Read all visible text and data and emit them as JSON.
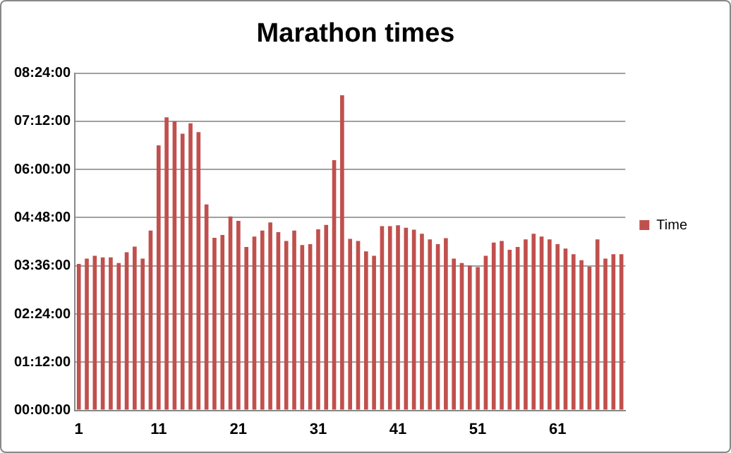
{
  "chart_data": {
    "type": "bar",
    "title": "Marathon times",
    "categories": [
      "1",
      null,
      null,
      null,
      null,
      null,
      null,
      null,
      null,
      null,
      "11",
      null,
      null,
      null,
      null,
      null,
      null,
      null,
      null,
      null,
      "21",
      null,
      null,
      null,
      null,
      null,
      null,
      null,
      null,
      null,
      "31",
      null,
      null,
      null,
      null,
      null,
      null,
      null,
      null,
      null,
      "41",
      null,
      null,
      null,
      null,
      null,
      null,
      null,
      null,
      null,
      "51",
      null,
      null,
      null,
      null,
      null,
      null,
      null,
      null,
      null,
      "61",
      null,
      null,
      null,
      null,
      null,
      null,
      null,
      null
    ],
    "series": [
      {
        "name": "Time",
        "color": "#c0504d",
        "values": [
          3.65,
          3.78,
          3.85,
          3.81,
          3.81,
          3.67,
          3.94,
          4.08,
          3.78,
          4.48,
          6.6,
          7.3,
          7.2,
          6.89,
          7.15,
          6.93,
          5.13,
          4.3,
          4.37,
          4.83,
          4.72,
          4.07,
          4.33,
          4.48,
          4.68,
          4.44,
          4.22,
          4.48,
          4.12,
          4.14,
          4.51,
          4.62,
          6.23,
          7.85,
          4.27,
          4.22,
          3.96,
          3.85,
          4.59,
          4.59,
          4.61,
          4.55,
          4.5,
          4.4,
          4.26,
          4.14,
          4.29,
          3.78,
          3.67,
          3.61,
          3.57,
          3.85,
          4.18,
          4.22,
          4,
          4.07,
          4.26,
          4.4,
          4.33,
          4.26,
          4.14,
          4.03,
          3.89,
          3.74,
          3.58,
          4.26,
          3.78,
          3.89,
          3.89
        ]
      }
    ],
    "ylim": [
      0,
      8.4
    ],
    "yticks": [
      {
        "value": 0,
        "label": "00:00:00"
      },
      {
        "value": 1.2,
        "label": "01:12:00"
      },
      {
        "value": 2.4,
        "label": "02:24:00"
      },
      {
        "value": 3.6,
        "label": "03:36:00"
      },
      {
        "value": 4.8,
        "label": "04:48:00"
      },
      {
        "value": 6,
        "label": "06:00:00"
      },
      {
        "value": 7.2,
        "label": "07:12:00"
      },
      {
        "value": 8.4,
        "label": "08:24:00"
      }
    ],
    "grid": "y",
    "legend": "right"
  }
}
